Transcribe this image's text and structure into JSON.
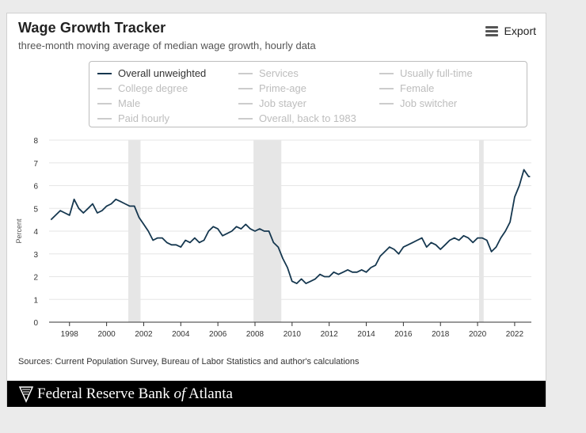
{
  "title": "Wage Growth Tracker",
  "subtitle": "three-month moving average of median wage growth, hourly data",
  "export_label": "Export",
  "legend": [
    {
      "label": "Overall unweighted",
      "active": true
    },
    {
      "label": "Services",
      "active": false
    },
    {
      "label": "Usually full-time",
      "active": false
    },
    {
      "label": "College degree",
      "active": false
    },
    {
      "label": "Prime-age",
      "active": false
    },
    {
      "label": "Female",
      "active": false
    },
    {
      "label": "Male",
      "active": false
    },
    {
      "label": "Job stayer",
      "active": false
    },
    {
      "label": "Job switcher",
      "active": false
    },
    {
      "label": "Paid hourly",
      "active": false
    },
    {
      "label": "Overall, back to 1983",
      "active": false
    }
  ],
  "sources": "Sources: Current Population Survey, Bureau of Labor Statistics and author's calculations",
  "footer": {
    "prefix": "Federal Reserve Bank ",
    "of": "of",
    "suffix": " Atlanta"
  },
  "colors": {
    "series": "#15374f",
    "recession": "#e6e6e6",
    "grid": "#e6e6e6",
    "footer_bg": "#000000"
  },
  "chart_data": {
    "type": "line",
    "title": "Wage Growth Tracker",
    "subtitle": "three-month moving average of median wage growth, hourly data",
    "ylabel": "Percent",
    "xlabel": "",
    "ylim": [
      0,
      8
    ],
    "xlim": [
      1996.9,
      2022.9
    ],
    "yticks": [
      0,
      1,
      2,
      3,
      4,
      5,
      6,
      7,
      8
    ],
    "xticks": [
      1998,
      2000,
      2002,
      2004,
      2006,
      2008,
      2010,
      2012,
      2014,
      2016,
      2018,
      2020,
      2022
    ],
    "grid": true,
    "recessions": [
      [
        2001.17,
        2001.83
      ],
      [
        2007.92,
        2009.42
      ],
      [
        2020.08,
        2020.33
      ]
    ],
    "series": [
      {
        "name": "Overall unweighted",
        "x": [
          1997.0,
          1997.25,
          1997.5,
          1997.75,
          1998.0,
          1998.25,
          1998.5,
          1998.75,
          1999.0,
          1999.25,
          1999.5,
          1999.75,
          2000.0,
          2000.25,
          2000.5,
          2000.75,
          2001.0,
          2001.25,
          2001.5,
          2001.75,
          2002.0,
          2002.25,
          2002.5,
          2002.75,
          2003.0,
          2003.25,
          2003.5,
          2003.75,
          2004.0,
          2004.25,
          2004.5,
          2004.75,
          2005.0,
          2005.25,
          2005.5,
          2005.75,
          2006.0,
          2006.25,
          2006.5,
          2006.75,
          2007.0,
          2007.25,
          2007.5,
          2007.75,
          2008.0,
          2008.25,
          2008.5,
          2008.75,
          2009.0,
          2009.25,
          2009.5,
          2009.75,
          2010.0,
          2010.25,
          2010.5,
          2010.75,
          2011.0,
          2011.25,
          2011.5,
          2011.75,
          2012.0,
          2012.25,
          2012.5,
          2012.75,
          2013.0,
          2013.25,
          2013.5,
          2013.75,
          2014.0,
          2014.25,
          2014.5,
          2014.75,
          2015.0,
          2015.25,
          2015.5,
          2015.75,
          2016.0,
          2016.25,
          2016.5,
          2016.75,
          2017.0,
          2017.25,
          2017.5,
          2017.75,
          2018.0,
          2018.25,
          2018.5,
          2018.75,
          2019.0,
          2019.25,
          2019.5,
          2019.75,
          2020.0,
          2020.25,
          2020.5,
          2020.75,
          2021.0,
          2021.25,
          2021.5,
          2021.75,
          2022.0,
          2022.25,
          2022.5,
          2022.75,
          2022.83
        ],
        "values": [
          4.5,
          4.7,
          4.9,
          4.8,
          4.7,
          5.4,
          5.0,
          4.8,
          5.0,
          5.2,
          4.8,
          4.9,
          5.1,
          5.2,
          5.4,
          5.3,
          5.2,
          5.1,
          5.1,
          4.6,
          4.3,
          4.0,
          3.6,
          3.7,
          3.7,
          3.5,
          3.4,
          3.4,
          3.3,
          3.6,
          3.5,
          3.7,
          3.5,
          3.6,
          4.0,
          4.2,
          4.1,
          3.8,
          3.9,
          4.0,
          4.2,
          4.1,
          4.3,
          4.1,
          4.0,
          4.1,
          4.0,
          4.0,
          3.5,
          3.3,
          2.8,
          2.4,
          1.8,
          1.7,
          1.9,
          1.7,
          1.8,
          1.9,
          2.1,
          2.0,
          2.0,
          2.2,
          2.1,
          2.2,
          2.3,
          2.2,
          2.2,
          2.3,
          2.2,
          2.4,
          2.5,
          2.9,
          3.1,
          3.3,
          3.2,
          3.0,
          3.3,
          3.4,
          3.5,
          3.6,
          3.7,
          3.3,
          3.5,
          3.4,
          3.2,
          3.4,
          3.6,
          3.7,
          3.6,
          3.8,
          3.7,
          3.5,
          3.7,
          3.7,
          3.6,
          3.1,
          3.3,
          3.7,
          4.0,
          4.4,
          5.5,
          6.0,
          6.7,
          6.4,
          6.4
        ]
      }
    ]
  }
}
